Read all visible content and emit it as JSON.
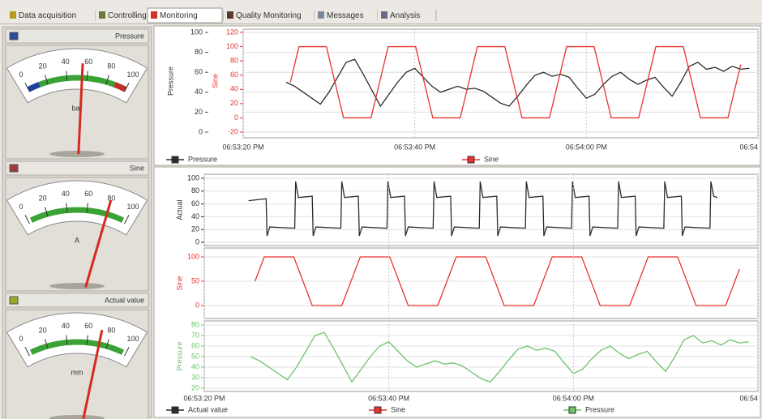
{
  "tabs": [
    "Data acquisition",
    "Controlling",
    "Monitoring",
    "Quality Monitoring",
    "Messages",
    "Analysis"
  ],
  "active_tab": 2,
  "gauges": [
    {
      "title": "Pressure",
      "unit": "bar",
      "icon_color": "#2a4a9a",
      "value": 55,
      "lim": [
        0,
        100
      ],
      "ticks": [
        0,
        20,
        40,
        60,
        80,
        100
      ],
      "bands": [
        {
          "from": 0,
          "to": 12,
          "color": "#1f3fa0"
        },
        {
          "from": 12,
          "to": 88,
          "color": "#3aa335"
        },
        {
          "from": 88,
          "to": 100,
          "color": "#c0302a"
        }
      ]
    },
    {
      "title": "Sine",
      "unit": "A",
      "icon_color": "#a33a3a",
      "value": 80,
      "lim": [
        0,
        100
      ],
      "ticks": [
        0,
        20,
        40,
        60,
        80,
        100
      ],
      "bands": [
        {
          "from": 3,
          "to": 97,
          "color": "#3aa335"
        }
      ]
    },
    {
      "title": "Actual value",
      "unit": "mm",
      "icon_color": "#9aaa2a",
      "value": 72,
      "lim": [
        0,
        100
      ],
      "ticks": [
        0,
        20,
        40,
        60,
        80,
        100
      ],
      "bands": [
        {
          "from": 3,
          "to": 97,
          "color": "#3aa335"
        }
      ]
    }
  ],
  "chart_data": [
    {
      "type": "line",
      "ylabel": "Pressure",
      "y2label": "Sine",
      "xlim": [
        68000,
        68060
      ],
      "xticks": [
        {
          "value": 68000,
          "label": "06:53:20 PM"
        },
        {
          "value": 68020,
          "label": "06:53:40 PM"
        },
        {
          "value": 68040,
          "label": "06:54:00 PM"
        },
        {
          "value": 68060,
          "label": "06:54"
        }
      ],
      "ylim": [
        0,
        100
      ],
      "yticks": [
        0,
        20,
        40,
        60,
        80,
        100
      ],
      "y2lim": [
        -20,
        120
      ],
      "y2ticks": [
        -20,
        0,
        20,
        40,
        60,
        80,
        100,
        120
      ],
      "grid": true,
      "series": [
        {
          "name": "Pressure",
          "color": "#2b2b2b",
          "x": [
            68005,
            68006,
            68007,
            68008,
            68009,
            68010,
            68011,
            68012,
            68013,
            68014,
            68015,
            68016,
            68017,
            68018,
            68019,
            68020,
            68021,
            68022,
            68023,
            68024,
            68025,
            68026,
            68027,
            68028,
            68029,
            68030,
            68031,
            68032,
            68033,
            68034,
            68035,
            68036,
            68037,
            68038,
            68039,
            68040,
            68041,
            68042,
            68043,
            68044,
            68045,
            68046,
            68047,
            68048,
            68049,
            68050,
            68051,
            68052,
            68053,
            68054,
            68055,
            68056,
            68057,
            68058,
            68059
          ],
          "values": [
            50,
            46,
            40,
            34,
            28,
            40,
            55,
            70,
            73,
            58,
            42,
            26,
            38,
            50,
            60,
            64,
            55,
            46,
            40,
            43,
            46,
            43,
            44,
            41,
            35,
            29,
            26,
            36,
            47,
            57,
            60,
            56,
            58,
            55,
            44,
            34,
            38,
            48,
            56,
            60,
            53,
            48,
            52,
            55,
            45,
            36,
            50,
            66,
            70,
            63,
            65,
            61,
            66,
            63,
            64
          ]
        },
        {
          "name": "Sine",
          "color": "#e8322e",
          "axis": "y2",
          "x": [
            68005.5,
            68006.5,
            68009.7,
            68011.7,
            68014.9,
            68016.9,
            68020.1,
            68022.1,
            68025.3,
            68027.3,
            68030.5,
            68032.5,
            68035.7,
            68037.7,
            68040.9,
            68042.9,
            68046.1,
            68048.1,
            68051.3,
            68053.3,
            68056.5,
            68058
          ],
          "values": [
            50,
            100,
            100,
            0,
            0,
            100,
            100,
            0,
            0,
            100,
            100,
            0,
            0,
            100,
            100,
            0,
            0,
            100,
            100,
            0,
            0,
            75
          ]
        }
      ]
    },
    {
      "type": "line",
      "xlim": [
        68000,
        68060
      ],
      "xticks": [
        {
          "value": 68000,
          "label": "06:53:20 PM"
        },
        {
          "value": 68020,
          "label": "06:53:40 PM"
        },
        {
          "value": 68040,
          "label": "06:54:00 PM"
        },
        {
          "value": 68060,
          "label": "06:54"
        }
      ],
      "grid": true,
      "series": [
        {
          "name": "Actual value",
          "ylabel": "Actual",
          "color": "#2b2b2b",
          "ylim": [
            0,
            100
          ],
          "yticks": [
            0,
            20,
            40,
            60,
            80,
            100
          ],
          "x": [
            68004.8,
            68006.7,
            68006.8,
            68007.1,
            68009.8,
            68009.9,
            68010.2,
            68011.7,
            68011.8,
            68012.1,
            68014.8,
            68014.9,
            68015.2,
            68016.7,
            68016.8,
            68017.1,
            68019.8,
            68019.9,
            68020.2,
            68021.7,
            68021.8,
            68022.1,
            68024.8,
            68024.9,
            68025.2,
            68026.7,
            68026.8,
            68027.1,
            68029.8,
            68029.9,
            68030.2,
            68031.7,
            68031.8,
            68032.1,
            68034.8,
            68034.9,
            68035.2,
            68036.7,
            68036.8,
            68037.1,
            68039.8,
            68039.9,
            68040.2,
            68041.7,
            68041.8,
            68042.1,
            68044.8,
            68044.9,
            68045.2,
            68046.7,
            68046.8,
            68047.1,
            68049.8,
            68049.9,
            68050.2,
            68051.7,
            68051.8,
            68052.1,
            68054.8,
            68054.9,
            68055.2,
            68055.6
          ],
          "values": [
            65,
            68,
            10,
            24,
            22,
            95,
            70,
            72,
            10,
            24,
            22,
            95,
            70,
            72,
            10,
            24,
            22,
            95,
            70,
            72,
            10,
            24,
            22,
            95,
            70,
            72,
            10,
            24,
            22,
            95,
            70,
            72,
            10,
            24,
            22,
            95,
            70,
            72,
            10,
            24,
            22,
            95,
            70,
            72,
            10,
            24,
            22,
            95,
            70,
            72,
            10,
            24,
            22,
            95,
            70,
            72,
            10,
            24,
            22,
            95,
            72,
            70
          ]
        },
        {
          "name": "Sine",
          "ylabel": "Sine",
          "color": "#e8322e",
          "ylim": [
            -20,
            110
          ],
          "yticks": [
            0,
            50,
            100
          ],
          "x": [
            68005.5,
            68006.5,
            68009.7,
            68011.7,
            68014.9,
            68016.9,
            68020.1,
            68022.1,
            68025.3,
            68027.3,
            68030.5,
            68032.5,
            68035.7,
            68037.7,
            68040.9,
            68042.9,
            68046.1,
            68048.1,
            68051.3,
            68053.3,
            68056.5,
            68058
          ],
          "values": [
            50,
            100,
            100,
            0,
            0,
            100,
            100,
            0,
            0,
            100,
            100,
            0,
            0,
            100,
            100,
            0,
            0,
            100,
            100,
            0,
            0,
            75
          ]
        },
        {
          "name": "Pressure",
          "ylabel": "Pressure",
          "color": "#6cc36c",
          "ylim": [
            20,
            80
          ],
          "yticks": [
            20,
            30,
            40,
            50,
            60,
            70,
            80
          ],
          "x": [
            68005,
            68006,
            68007,
            68008,
            68009,
            68010,
            68011,
            68012,
            68013,
            68014,
            68015,
            68016,
            68017,
            68018,
            68019,
            68020,
            68021,
            68022,
            68023,
            68024,
            68025,
            68026,
            68027,
            68028,
            68029,
            68030,
            68031,
            68032,
            68033,
            68034,
            68035,
            68036,
            68037,
            68038,
            68039,
            68040,
            68041,
            68042,
            68043,
            68044,
            68045,
            68046,
            68047,
            68048,
            68049,
            68050,
            68051,
            68052,
            68053,
            68054,
            68055,
            68056,
            68057,
            68058,
            68059
          ],
          "values": [
            50,
            46,
            40,
            34,
            28,
            40,
            55,
            70,
            73,
            58,
            42,
            26,
            38,
            50,
            60,
            64,
            55,
            46,
            40,
            43,
            46,
            43,
            44,
            41,
            35,
            29,
            26,
            36,
            47,
            57,
            60,
            56,
            58,
            55,
            44,
            34,
            38,
            48,
            56,
            60,
            53,
            48,
            52,
            55,
            45,
            36,
            50,
            66,
            70,
            63,
            65,
            61,
            66,
            63,
            64
          ]
        }
      ]
    }
  ]
}
